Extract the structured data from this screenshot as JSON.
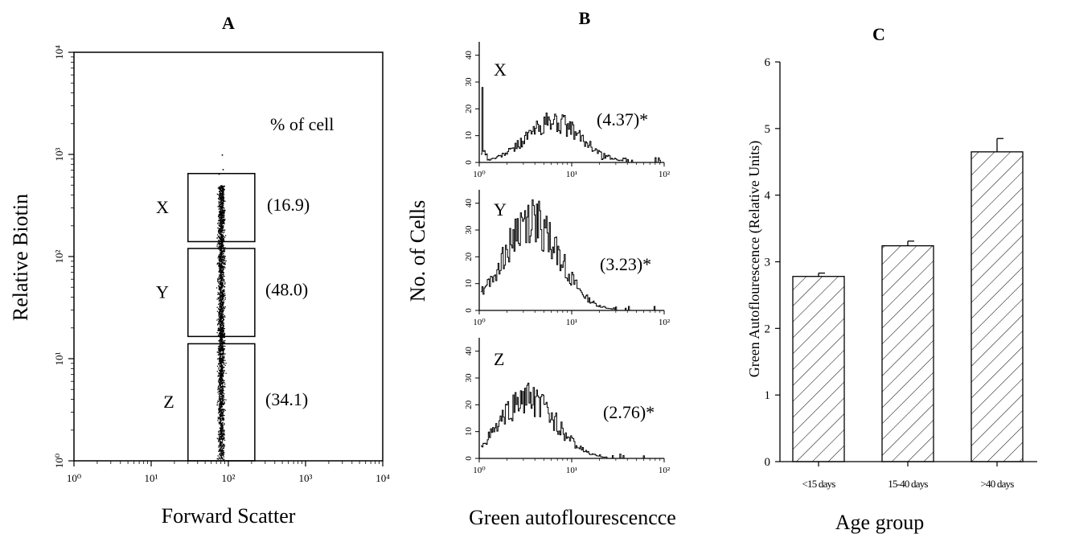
{
  "chart_data": [
    {
      "panel": "A",
      "type": "scatter",
      "title": "",
      "xlabel": "Forward Scatter",
      "ylabel": "Relative Biotin",
      "x_scale": "log",
      "y_scale": "log",
      "xlim": [
        1,
        10000
      ],
      "ylim": [
        1,
        10000
      ],
      "x_ticks": [
        {
          "v": 1,
          "label": "10⁰"
        },
        {
          "v": 10,
          "label": "10¹"
        },
        {
          "v": 100,
          "label": "10²"
        },
        {
          "v": 1000,
          "label": "10³"
        },
        {
          "v": 10000,
          "label": "10⁴"
        }
      ],
      "y_ticks": [
        {
          "v": 1,
          "label": "10⁰"
        },
        {
          "v": 10,
          "label": "10¹"
        },
        {
          "v": 100,
          "label": "10²"
        },
        {
          "v": 1000,
          "label": "10³"
        },
        {
          "v": 10000,
          "label": "10⁴"
        }
      ],
      "annotation": "% of cell",
      "gates": [
        {
          "name": "X",
          "percent_label": "(16.9)",
          "x_range": [
            30,
            220
          ],
          "y_range": [
            140,
            650
          ]
        },
        {
          "name": "Y",
          "percent_label": "(48.0)",
          "x_range": [
            30,
            220
          ],
          "y_range": [
            16.5,
            120
          ]
        },
        {
          "name": "Z",
          "percent_label": "(34.1)",
          "x_range": [
            30,
            220
          ],
          "y_range": [
            1,
            14
          ]
        }
      ],
      "population": {
        "x_center": 80,
        "y_range": [
          1,
          1000
        ]
      }
    },
    {
      "panel": "B",
      "type": "line",
      "title": "",
      "xlabel": "Green autoflourescencce",
      "ylabel": "No. of Cells",
      "x_scale": "log",
      "xlim": [
        1,
        100
      ],
      "x_ticks": [
        {
          "v": 1,
          "label": "10⁰"
        },
        {
          "v": 10,
          "label": "10¹"
        },
        {
          "v": 100,
          "label": "10²"
        }
      ],
      "ylim": [
        0,
        45
      ],
      "y_ticks": [
        0,
        10,
        20,
        30,
        40
      ],
      "histograms": [
        {
          "name": "X",
          "mean_label": "(4.37)*",
          "peak_x": 6,
          "peak_y": 15,
          "spike_y": 28
        },
        {
          "name": "Y",
          "mean_label": "(3.23)*",
          "peak_x": 3.5,
          "peak_y": 33,
          "spike_y": 0
        },
        {
          "name": "Z",
          "mean_label": "(2.76)*",
          "peak_x": 3.2,
          "peak_y": 22,
          "spike_y": 0
        }
      ]
    },
    {
      "panel": "C",
      "type": "bar",
      "title": "",
      "xlabel": "Age group",
      "ylabel": "Green Autoflourescence (Relative Units)",
      "categories": [
        "<15 days",
        "15-40 days",
        ">40 days"
      ],
      "values": [
        2.78,
        3.24,
        4.65
      ],
      "errors": [
        0.05,
        0.07,
        0.2
      ],
      "ylim": [
        0,
        6
      ],
      "y_ticks": [
        0,
        1,
        2,
        3,
        4,
        5,
        6
      ],
      "pattern": "diagonal-hatch"
    }
  ]
}
